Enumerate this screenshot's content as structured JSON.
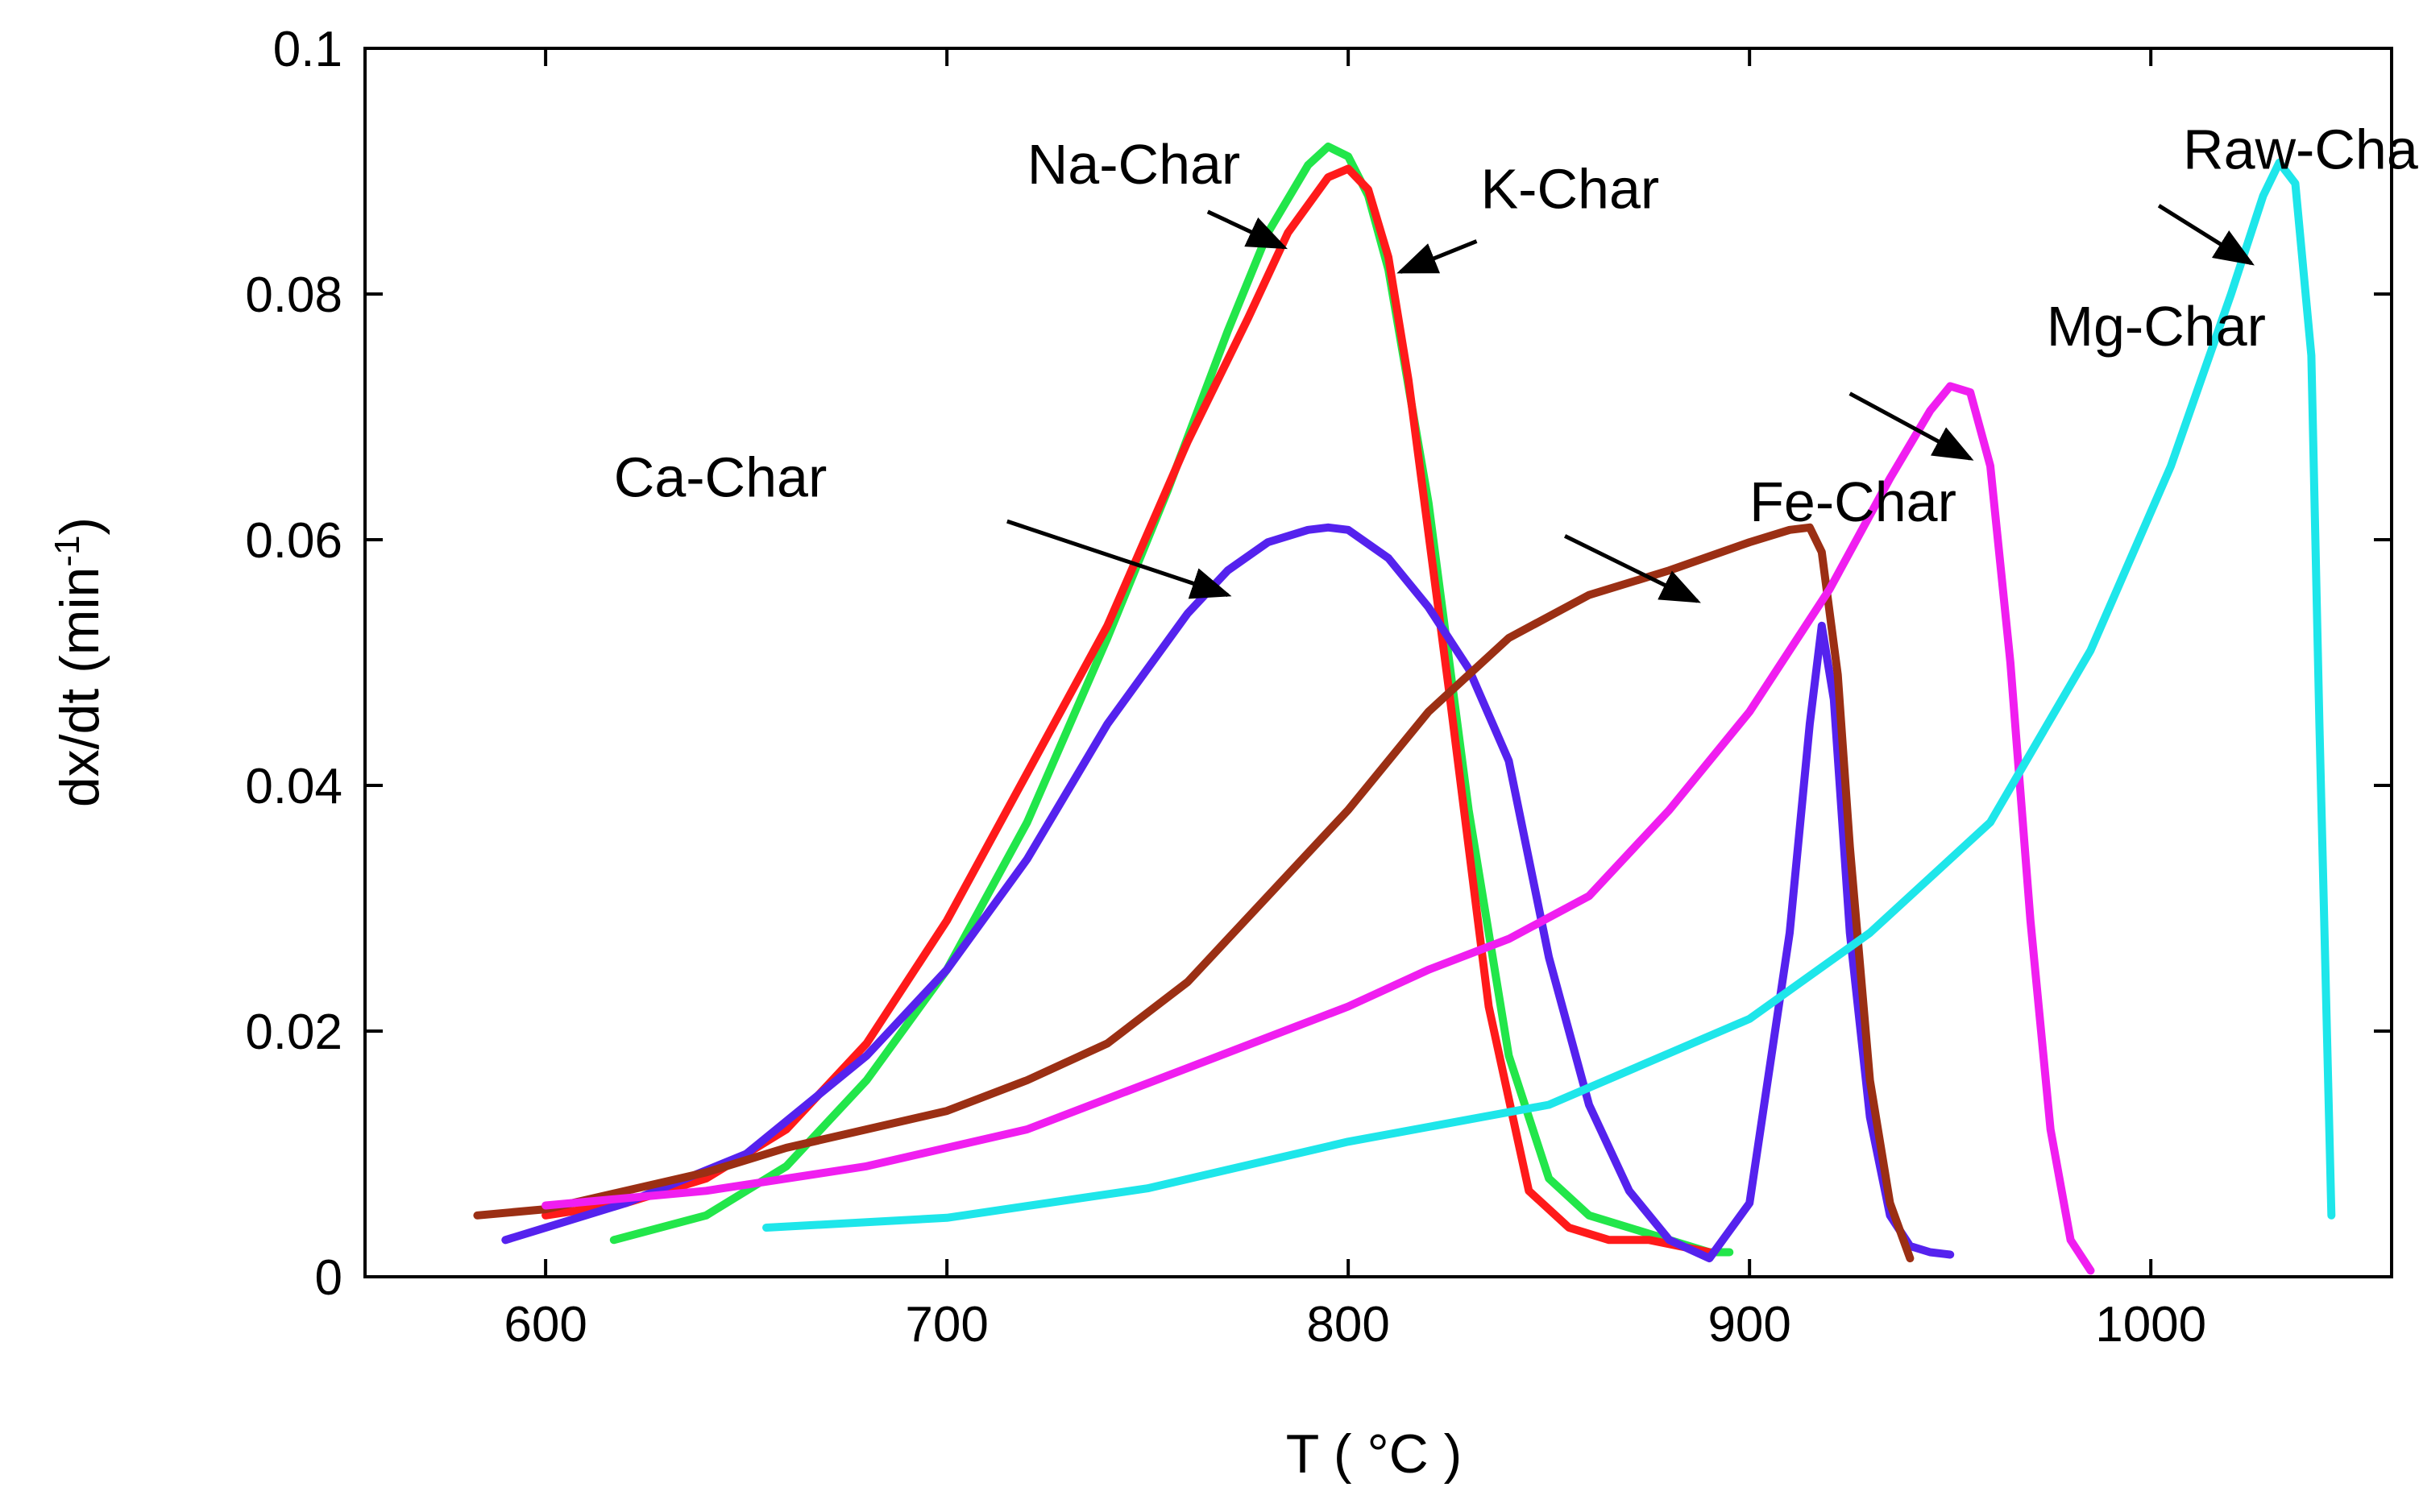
{
  "chart_data": {
    "type": "line",
    "title": "",
    "xlabel": "T ( °C )",
    "ylabel": "dx/dt (min",
    "ylabel_sup": "-1",
    "ylabel_close": ")",
    "xlim": [
      555,
      1060
    ],
    "ylim": [
      0,
      0.1
    ],
    "xticks": [
      600,
      700,
      800,
      900,
      1000
    ],
    "xtick_labels": [
      "600",
      "700",
      "800",
      "900",
      "1000"
    ],
    "yticks": [
      0,
      0.02,
      0.04,
      0.06,
      0.08,
      0.1
    ],
    "ytick_labels": [
      "0",
      "0.02",
      "0.04",
      "0.06",
      "0.08",
      "0.1"
    ],
    "grid": false,
    "series": [
      {
        "name": "Na-Char",
        "color": "#22e64a",
        "label_anchor": [
          720,
          0.089
        ],
        "arrow": [
          [
            765,
            0.0867
          ],
          [
            784,
            0.0838
          ]
        ],
        "x": [
          617,
          640,
          660,
          680,
          700,
          720,
          740,
          755,
          770,
          780,
          790,
          795,
          800,
          805,
          810,
          820,
          830,
          840,
          850,
          860,
          870,
          880,
          890,
          895
        ],
        "y": [
          0.003,
          0.005,
          0.009,
          0.016,
          0.025,
          0.037,
          0.052,
          0.064,
          0.077,
          0.085,
          0.0905,
          0.092,
          0.0912,
          0.088,
          0.082,
          0.063,
          0.038,
          0.018,
          0.008,
          0.005,
          0.004,
          0.003,
          0.002,
          0.002
        ]
      },
      {
        "name": "K-Char",
        "color": "#ff1a1a",
        "label_anchor": [
          833,
          0.087
        ],
        "arrow": [
          [
            832,
            0.0843
          ],
          [
            813,
            0.0818
          ]
        ],
        "x": [
          600,
          620,
          640,
          660,
          680,
          700,
          720,
          740,
          760,
          775,
          785,
          795,
          800,
          805,
          810,
          815,
          825,
          835,
          845,
          855,
          865,
          875,
          890
        ],
        "y": [
          0.005,
          0.006,
          0.008,
          0.012,
          0.019,
          0.029,
          0.041,
          0.053,
          0.068,
          0.078,
          0.085,
          0.0895,
          0.0902,
          0.0885,
          0.083,
          0.073,
          0.048,
          0.022,
          0.007,
          0.004,
          0.003,
          0.003,
          0.002
        ]
      },
      {
        "name": "Ca-Char",
        "color": "#5522ee",
        "label_anchor": [
          617,
          0.0635
        ],
        "arrow": [
          [
            715,
            0.0615
          ],
          [
            770,
            0.0555
          ]
        ],
        "x": [
          590,
          620,
          650,
          680,
          700,
          720,
          740,
          760,
          770,
          780,
          790,
          795,
          800,
          810,
          820,
          830,
          840,
          850,
          860,
          870,
          880,
          890,
          900,
          910,
          915,
          918,
          921,
          925,
          930,
          935,
          940,
          945,
          950
        ],
        "y": [
          0.003,
          0.006,
          0.01,
          0.018,
          0.025,
          0.034,
          0.045,
          0.054,
          0.0575,
          0.0598,
          0.0608,
          0.061,
          0.0608,
          0.0585,
          0.0545,
          0.0495,
          0.042,
          0.026,
          0.014,
          0.007,
          0.003,
          0.0015,
          0.006,
          0.028,
          0.045,
          0.053,
          0.047,
          0.028,
          0.013,
          0.005,
          0.0025,
          0.002,
          0.0018
        ]
      },
      {
        "name": "Fe-Char",
        "color": "#9b2f14",
        "label_anchor": [
          900,
          0.0615
        ],
        "arrow": [
          [
            854,
            0.0603
          ],
          [
            887,
            0.055
          ]
        ],
        "x": [
          583,
          600,
          620,
          640,
          660,
          680,
          700,
          720,
          740,
          760,
          780,
          800,
          820,
          840,
          860,
          880,
          900,
          910,
          915,
          918,
          922,
          925,
          930,
          935,
          940
        ],
        "y": [
          0.005,
          0.0055,
          0.007,
          0.0085,
          0.0105,
          0.012,
          0.0135,
          0.016,
          0.019,
          0.024,
          0.031,
          0.038,
          0.046,
          0.052,
          0.0555,
          0.0575,
          0.0598,
          0.0608,
          0.061,
          0.059,
          0.049,
          0.035,
          0.016,
          0.006,
          0.0015
        ]
      },
      {
        "name": "Mg-Char",
        "color": "#f01ef0",
        "label_anchor": [
          974,
          0.0758
        ],
        "arrow": [
          [
            925,
            0.0719
          ],
          [
            955,
            0.0666
          ]
        ],
        "x": [
          600,
          640,
          680,
          720,
          760,
          800,
          820,
          840,
          860,
          880,
          900,
          920,
          935,
          945,
          950,
          955,
          960,
          965,
          970,
          975,
          980,
          985
        ],
        "y": [
          0.0058,
          0.007,
          0.009,
          0.012,
          0.017,
          0.022,
          0.025,
          0.0275,
          0.031,
          0.038,
          0.046,
          0.056,
          0.065,
          0.0705,
          0.0725,
          0.072,
          0.066,
          0.05,
          0.029,
          0.012,
          0.003,
          0.0005
        ]
      },
      {
        "name": "Raw-Char",
        "color": "#1ee6ea",
        "label_anchor": [
          1008,
          0.0902
        ],
        "arrow": [
          [
            1002,
            0.0872
          ],
          [
            1025,
            0.0825
          ]
        ],
        "x": [
          655,
          700,
          750,
          800,
          850,
          900,
          930,
          960,
          985,
          1005,
          1020,
          1028,
          1032,
          1036,
          1040,
          1042,
          1045
        ],
        "y": [
          0.004,
          0.0048,
          0.0072,
          0.011,
          0.014,
          0.021,
          0.028,
          0.037,
          0.051,
          0.066,
          0.08,
          0.088,
          0.0907,
          0.089,
          0.075,
          0.045,
          0.005
        ]
      }
    ]
  }
}
